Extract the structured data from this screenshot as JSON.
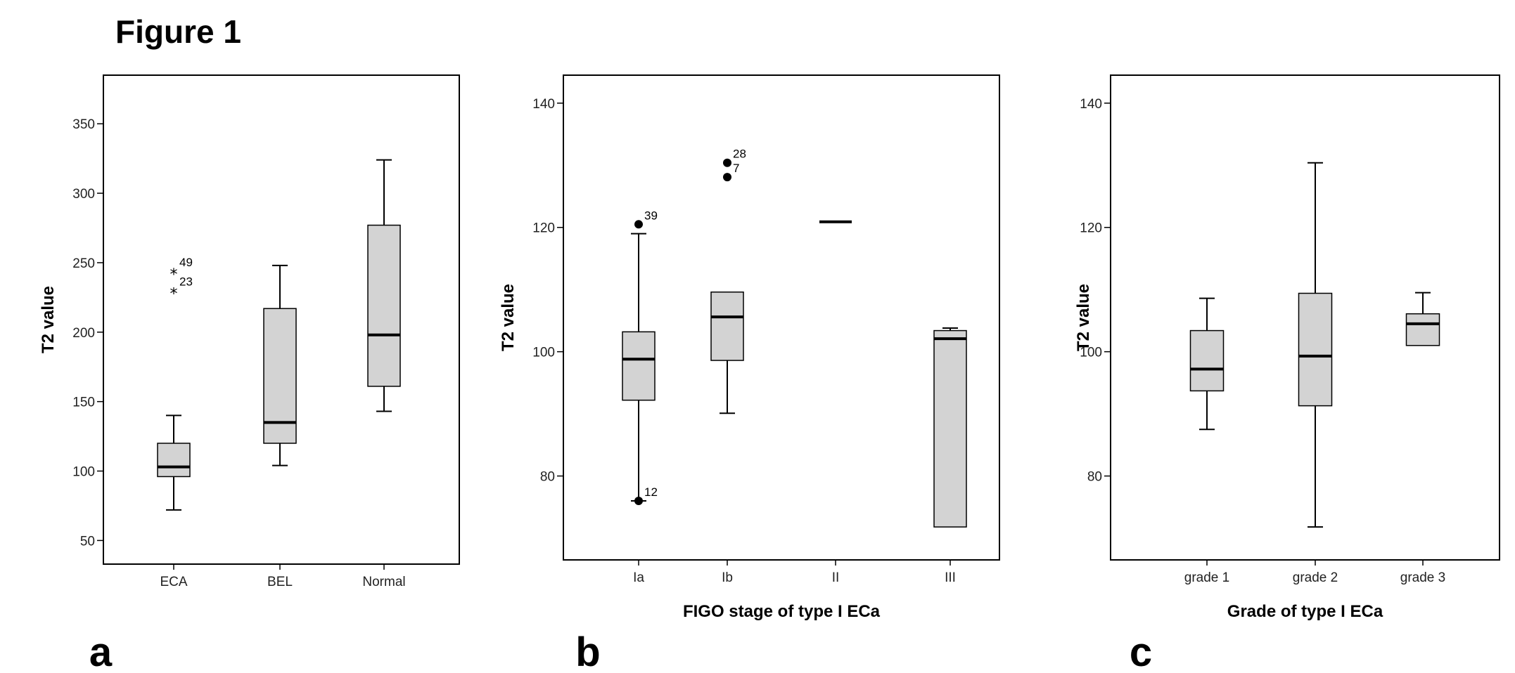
{
  "figure_title": "Figure 1",
  "chart_data": [
    {
      "type": "box",
      "panel_letter": "a",
      "ylabel": "T2 value",
      "xlabel": "",
      "ylim": [
        33,
        385
      ],
      "yticks": [
        50,
        100,
        150,
        200,
        250,
        300,
        350
      ],
      "categories": [
        "ECA",
        "BEL",
        "Normal"
      ],
      "boxes": [
        {
          "category": "ECA",
          "whisker_low": 72,
          "q1": 96,
          "median": 103,
          "q3": 120,
          "whisker_high": 140,
          "outliers": [
            {
              "value": 244,
              "label": "49",
              "marker": "star"
            },
            {
              "value": 230,
              "label": "23",
              "marker": "star"
            }
          ]
        },
        {
          "category": "BEL",
          "whisker_low": 104,
          "q1": 120,
          "median": 135,
          "q3": 217,
          "whisker_high": 248,
          "outliers": []
        },
        {
          "category": "Normal",
          "whisker_low": 143,
          "q1": 161,
          "median": 198,
          "q3": 277,
          "whisker_high": 324,
          "outliers": []
        }
      ]
    },
    {
      "type": "box",
      "panel_letter": "b",
      "ylabel": "T2 value",
      "xlabel": "FIGO stage of type I ECa",
      "ylim": [
        66.5,
        144.5
      ],
      "yticks": [
        80,
        100,
        120,
        140
      ],
      "categories": [
        "Ia",
        "Ib",
        "II",
        "III"
      ],
      "boxes": [
        {
          "category": "Ia",
          "whisker_low": 76,
          "q1": 92.2,
          "median": 98.8,
          "q3": 103.2,
          "whisker_high": 119,
          "outliers": [
            {
              "value": 120.5,
              "label": "39",
              "marker": "dot"
            },
            {
              "value": 76,
              "label": "12",
              "marker": "dot"
            }
          ]
        },
        {
          "category": "Ib",
          "whisker_low": 90.1,
          "q1": 98.6,
          "median": 105.6,
          "q3": 109.6,
          "whisker_high": 109.6,
          "outliers": [
            {
              "value": 130.4,
              "label": "28",
              "marker": "dot"
            },
            {
              "value": 128.1,
              "label": "7",
              "marker": "dot"
            }
          ]
        },
        {
          "category": "II",
          "whisker_low": 120.9,
          "q1": 120.9,
          "median": 120.9,
          "q3": 120.9,
          "whisker_high": 120.9,
          "outliers": []
        },
        {
          "category": "III",
          "whisker_low": 71.8,
          "q1": 71.8,
          "median": 102.1,
          "q3": 103.4,
          "whisker_high": 103.8,
          "outliers": []
        }
      ]
    },
    {
      "type": "box",
      "panel_letter": "c",
      "ylabel": "T2 value",
      "xlabel": "Grade of type I ECa",
      "ylim": [
        66.5,
        144.5
      ],
      "yticks": [
        80,
        100,
        120,
        140
      ],
      "categories": [
        "grade 1",
        "grade 2",
        "grade 3"
      ],
      "boxes": [
        {
          "category": "grade 1",
          "whisker_low": 87.5,
          "q1": 93.7,
          "median": 97.2,
          "q3": 103.4,
          "whisker_high": 108.6,
          "outliers": []
        },
        {
          "category": "grade 2",
          "whisker_low": 71.8,
          "q1": 91.3,
          "median": 99.3,
          "q3": 109.4,
          "whisker_high": 130.4,
          "outliers": []
        },
        {
          "category": "grade 3",
          "whisker_low": 101.0,
          "q1": 101.0,
          "median": 104.5,
          "q3": 106.1,
          "whisker_high": 109.5,
          "outliers": []
        }
      ]
    }
  ],
  "colors": {
    "box_fill": "#d3d3d3",
    "line": "#000000",
    "plot_border": "#000000"
  }
}
